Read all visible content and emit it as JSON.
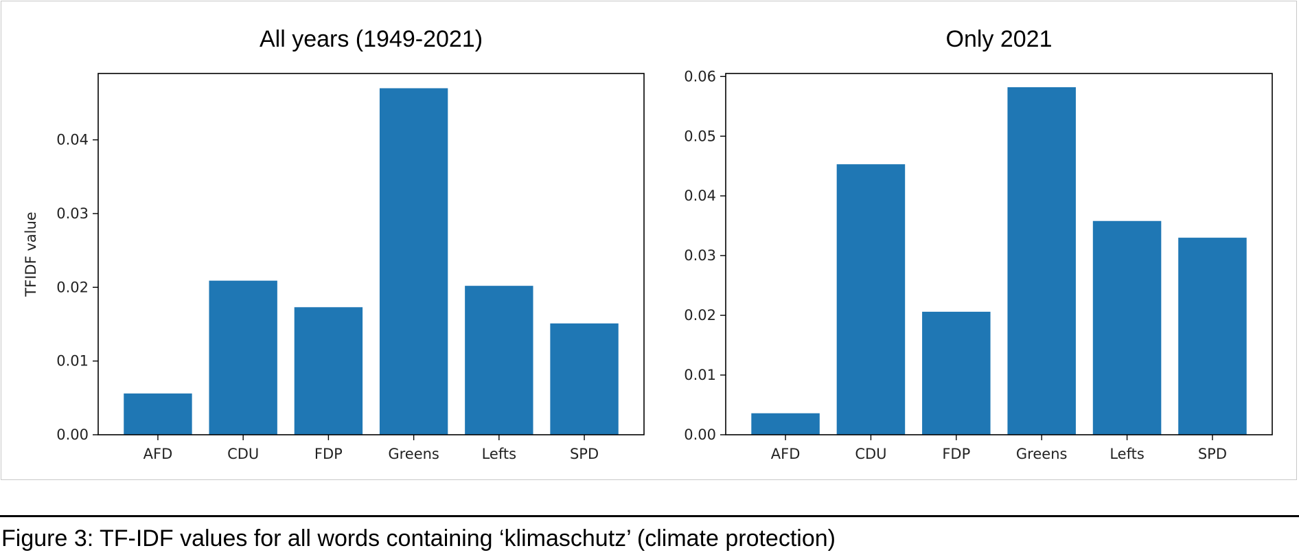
{
  "caption": "Figure 3: TF-IDF values for all words containing ‘klimaschutz’ (climate protection)",
  "bar_color": "#1f77b4",
  "chart_data": [
    {
      "type": "bar",
      "title": "All years (1949-2021)",
      "xlabel": "",
      "ylabel": "TFIDF value",
      "categories": [
        "AFD",
        "CDU",
        "FDP",
        "Greens",
        "Lefts",
        "SPD"
      ],
      "values": [
        0.0056,
        0.0209,
        0.0173,
        0.047,
        0.0202,
        0.0151
      ],
      "ylim": [
        0,
        0.049
      ],
      "yticks": [
        "0.00",
        "0.01",
        "0.02",
        "0.03",
        "0.04"
      ],
      "grid": false
    },
    {
      "type": "bar",
      "title": "Only 2021",
      "xlabel": "",
      "ylabel": "",
      "categories": [
        "AFD",
        "CDU",
        "FDP",
        "Greens",
        "Lefts",
        "SPD"
      ],
      "values": [
        0.0036,
        0.0453,
        0.0206,
        0.0582,
        0.0358,
        0.033
      ],
      "ylim": [
        0,
        0.0605
      ],
      "yticks": [
        "0.00",
        "0.01",
        "0.02",
        "0.03",
        "0.04",
        "0.05",
        "0.06"
      ],
      "grid": false
    }
  ]
}
